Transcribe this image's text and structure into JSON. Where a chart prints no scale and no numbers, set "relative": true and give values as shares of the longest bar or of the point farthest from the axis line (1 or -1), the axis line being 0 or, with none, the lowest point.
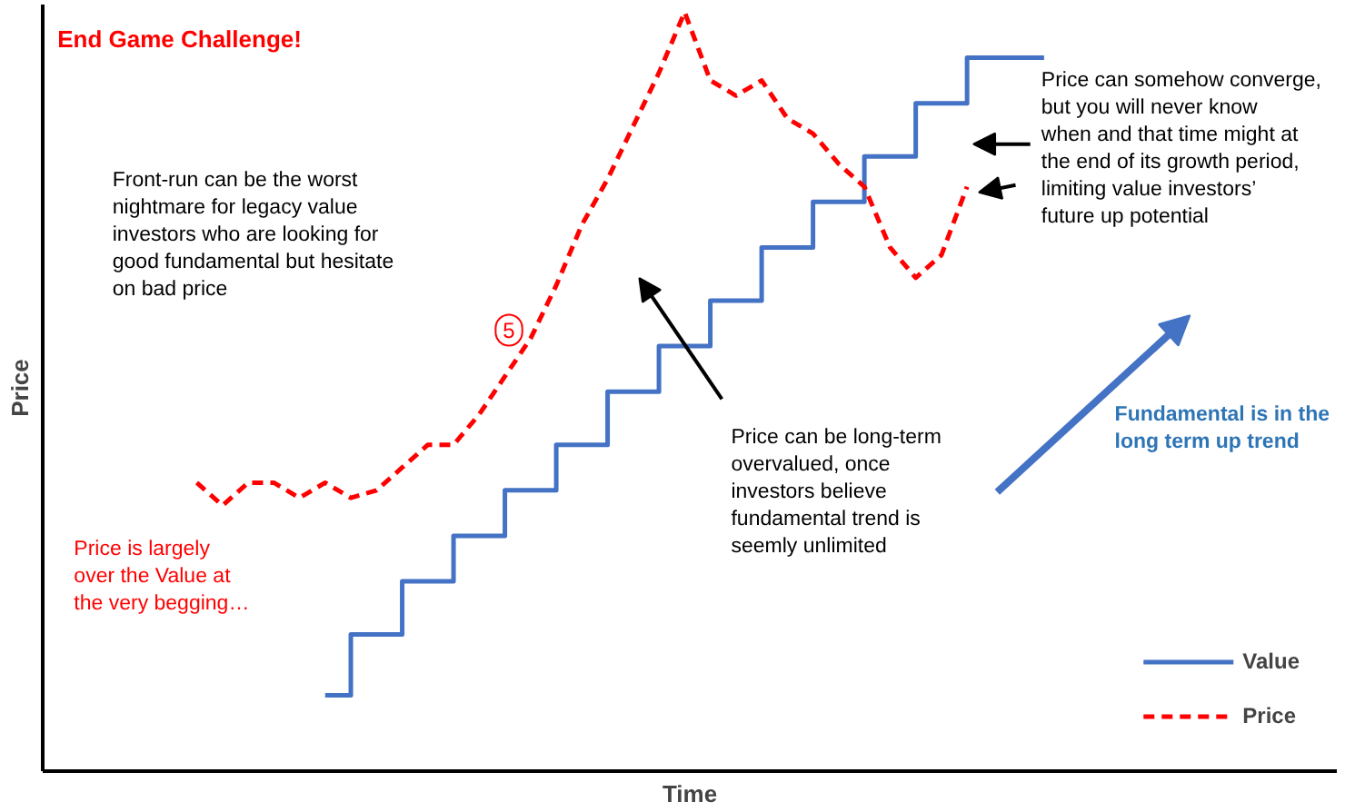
{
  "chart_data": {
    "type": "line",
    "relative": true,
    "tick_labels": false,
    "legend": "bottom right",
    "title": "End Game Challenge!",
    "xlabel": "Time",
    "ylabel": "Price",
    "categories": [
      null,
      null,
      null,
      null,
      null,
      null,
      null,
      null,
      null,
      null,
      null,
      null,
      null,
      null,
      null,
      null,
      null,
      null,
      null,
      null,
      null,
      null,
      null,
      null,
      null,
      null,
      null,
      null,
      null,
      null,
      null,
      null,
      null,
      null,
      null,
      null,
      null,
      null,
      null,
      null,
      null,
      null,
      null,
      null,
      null,
      null,
      null,
      null,
      null,
      null,
      null
    ],
    "series": [
      {
        "name": "Value",
        "type": "step",
        "color": "#4472c4",
        "values": [
          null,
          null,
          null,
          null,
          null,
          null,
          null,
          null,
          null,
          null,
          null,
          0.1,
          0.18,
          0.18,
          0.25,
          0.25,
          0.31,
          0.31,
          0.37,
          0.37,
          0.43,
          0.43,
          0.5,
          0.5,
          0.56,
          0.56,
          0.62,
          0.62,
          0.69,
          0.69,
          0.75,
          0.75,
          0.81,
          0.81,
          0.88,
          0.88,
          0.94,
          0.94,
          0.94,
          0.94,
          null,
          null,
          null,
          null,
          null,
          null,
          null,
          null,
          null,
          null,
          null
        ]
      },
      {
        "name": "Price",
        "line_style": "dashed",
        "color": "#ff0000",
        "values": [
          null,
          null,
          null,
          null,
          null,
          null,
          0.38,
          0.35,
          0.38,
          0.38,
          0.36,
          0.38,
          0.36,
          0.37,
          0.4,
          0.43,
          0.43,
          0.47,
          0.52,
          0.57,
          0.64,
          0.72,
          0.78,
          0.85,
          0.92,
          1.0,
          0.91,
          0.89,
          0.91,
          0.86,
          0.84,
          0.8,
          0.77,
          0.69,
          0.65,
          0.68,
          0.77,
          null,
          null,
          null,
          null,
          null,
          null,
          null,
          null,
          null,
          null,
          null,
          null,
          null,
          null
        ]
      }
    ],
    "annotations": [
      "Front-run can be the worst\nnightmare for legacy value\ninvestors who are looking for\ngood fundamental but hesitate\non bad price",
      "5",
      "Price can be long-term\novervalued, once\ninvestors believe\nfundamental trend is\nseemly unlimited",
      "Price can somehow converge,\nbut you will never know\nwhen and that time might at\nthe end of its growth period,\nlimiting value investors’\nfuture up potential",
      "Fundamental is in the\nlong term up trend",
      "Price is largely\nover the Value at\nthe very begging…"
    ]
  }
}
